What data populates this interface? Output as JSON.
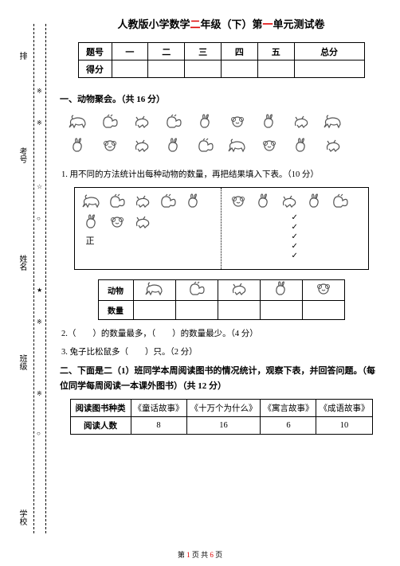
{
  "title_pre": "人教版小学数学",
  "title_grade": "二",
  "title_mid": "年级（下）第",
  "title_unit": "一",
  "title_post": "单元测试卷",
  "score": {
    "row1": "题号",
    "cols": [
      "一",
      "二",
      "三",
      "四",
      "五",
      "总分"
    ],
    "row2": "得分"
  },
  "s1": {
    "h": "一、动物聚会。（共 16 分）",
    "q1": "1. 用不同的方法统计出每种动物的数量，再把结果填入下表。（10 分）",
    "tally_mark": "正",
    "at_rows": [
      "动物",
      "数量"
    ],
    "q2": "2.（　　）的数量最多，（　　）的数量最少。（4 分）",
    "q3": "3. 兔子比松鼠多（　　）只。（2 分）"
  },
  "s2": {
    "h": "二、下面是二（1）班同学本周阅读图书的情况统计，观察下表，并回答问题。（每位同学每周阅读一本课外图书）（共 12 分）",
    "th": "阅读图书种类",
    "cols": [
      "《童话故事》",
      "《十万个为什么》",
      "《寓言故事》",
      "《成语故事》"
    ],
    "rh": "阅读人数",
    "vals": [
      "8",
      "16",
      "6",
      "10"
    ]
  },
  "side": [
    "排",
    "考号",
    "姓名",
    "班级",
    "学校"
  ],
  "footer": {
    "a": "第 ",
    "b": "1",
    "c": " 页 共 ",
    "d": "6",
    "e": " 页"
  }
}
